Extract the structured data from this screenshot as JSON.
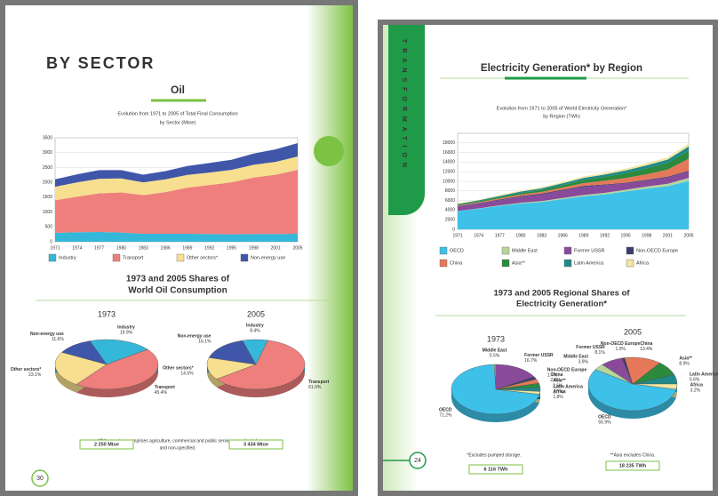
{
  "left_page": {
    "heading": "BY SECTOR",
    "chart_title": "Oil",
    "area_chart": {
      "type": "area",
      "subtitle": [
        "Evolution from 1971 to 2005 of Total Final Consumption",
        "by Sector (Mtoe)"
      ],
      "categories": [
        "1971",
        "1974",
        "1977",
        "1980",
        "1983",
        "1986",
        "1989",
        "1992",
        "1995",
        "1998",
        "2001",
        "2005"
      ],
      "ylim": [
        0,
        3500
      ],
      "yticks": [
        0,
        500,
        1000,
        1500,
        2000,
        2500,
        3000,
        3500
      ],
      "series": [
        {
          "name": "Industry",
          "color": "#35b7d9",
          "values": [
            300,
            320,
            330,
            310,
            270,
            270,
            270,
            260,
            250,
            260,
            260,
            270
          ]
        },
        {
          "name": "Transport",
          "color": "#ee7f7c",
          "values": [
            1100,
            1200,
            1300,
            1350,
            1300,
            1400,
            1550,
            1650,
            1750,
            1900,
            2000,
            2150
          ]
        },
        {
          "name": "Other sectors*",
          "color": "#f7df8f",
          "values": [
            450,
            480,
            490,
            470,
            430,
            430,
            430,
            420,
            420,
            430,
            430,
            450
          ]
        },
        {
          "name": "Non-energy use",
          "color": "#4056a8",
          "values": [
            250,
            270,
            290,
            280,
            260,
            280,
            300,
            320,
            340,
            380,
            420,
            450
          ]
        }
      ]
    },
    "pie_title": [
      "1973 and 2005 Shares of",
      "World Oil Consumption"
    ],
    "pies": [
      {
        "type": "pie",
        "year": "1973",
        "total": "2 250 Mtoe",
        "categories": [
          "Industry",
          "Transport",
          "Other sectors*",
          "Non-energy use"
        ],
        "values": [
          19.9,
          45.4,
          23.1,
          11.6
        ],
        "value_labels": [
          "19.9%",
          "45.4%",
          "23.1%",
          "11.6%"
        ]
      },
      {
        "type": "pie",
        "year": "2005",
        "total": "3 434 Mtoe",
        "categories": [
          "Industry",
          "Transport",
          "Other sectors*",
          "Non-energy use"
        ],
        "values": [
          8.4,
          61.0,
          14.5,
          16.1
        ],
        "value_labels": [
          "8.4%",
          "61.0%",
          "14.5%",
          "16.1%"
        ]
      }
    ],
    "footnote": [
      "*Other sectors comprises agriculture, commercial and public services, residential",
      "and non-specified."
    ],
    "page_number": "30"
  },
  "right_page": {
    "tab": "TRANSFORMATION",
    "chart_title": "Electricity Generation* by Region",
    "area_chart": {
      "type": "area",
      "subtitle": [
        "Evolution from 1971 to 2005 of World Electricity Generation*",
        "by Region (TWh)"
      ],
      "categories": [
        "1971",
        "1974",
        "1977",
        "1980",
        "1983",
        "1986",
        "1989",
        "1992",
        "1995",
        "1998",
        "2001",
        "2005"
      ],
      "ylim": [
        0,
        20000
      ],
      "yticks": [
        0,
        2000,
        4000,
        6000,
        8000,
        10000,
        12000,
        14000,
        16000,
        18000
      ],
      "series": [
        {
          "name": "OECD",
          "color": "#3ec1e8",
          "values": [
            3800,
            4300,
            4900,
            5400,
            5700,
            6300,
            6900,
            7300,
            7900,
            8500,
            9000,
            10100
          ]
        },
        {
          "name": "Middle East",
          "color": "#b5d79a",
          "values": [
            30,
            50,
            90,
            130,
            180,
            220,
            250,
            300,
            350,
            420,
            500,
            600
          ]
        },
        {
          "name": "Former USSR",
          "color": "#8a4a9a",
          "values": [
            900,
            1000,
            1100,
            1250,
            1400,
            1550,
            1700,
            1600,
            1300,
            1250,
            1300,
            1350
          ]
        },
        {
          "name": "Non-OECD Europe",
          "color": "#3c3c6e",
          "values": [
            100,
            120,
            140,
            160,
            180,
            190,
            200,
            160,
            150,
            160,
            170,
            180
          ]
        },
        {
          "name": "China",
          "color": "#e6785a",
          "values": [
            150,
            180,
            230,
            300,
            350,
            450,
            580,
            750,
            1000,
            1150,
            1450,
            2500
          ]
        },
        {
          "name": "Asia**",
          "color": "#2c8a3c",
          "values": [
            150,
            200,
            250,
            320,
            400,
            500,
            650,
            800,
            1000,
            1200,
            1400,
            1650
          ]
        },
        {
          "name": "Latin America",
          "color": "#1f8a8a",
          "values": [
            150,
            190,
            240,
            300,
            340,
            390,
            440,
            500,
            580,
            660,
            720,
            900
          ]
        },
        {
          "name": "Africa",
          "color": "#f2e6a0",
          "values": [
            120,
            140,
            170,
            200,
            230,
            270,
            300,
            330,
            360,
            400,
            440,
            550
          ]
        }
      ]
    },
    "pie_title": [
      "1973 and 2005 Regional Shares of",
      "Electricity Generation*"
    ],
    "pies": [
      {
        "type": "pie",
        "year": "1973",
        "total": "6 116 TWh",
        "categories": [
          "OECD",
          "Middle East",
          "Former USSR",
          "Non-OECD Europe",
          "China",
          "Asia**",
          "Latin America",
          "Africa"
        ],
        "values": [
          71.2,
          0.5,
          16.7,
          1.7,
          2.8,
          2.6,
          2.7,
          1.8
        ],
        "value_labels": [
          "71.2%",
          "0.5%",
          "16.7%",
          "1.7%",
          "2.8%",
          "2.6%",
          "2.7%",
          "1.8%"
        ]
      },
      {
        "type": "pie",
        "year": "2005",
        "total": "18 235 TWh",
        "categories": [
          "OECD",
          "Middle East",
          "Former USSR",
          "Non-OECD Europe",
          "China",
          "Asia**",
          "Latin America",
          "Africa"
        ],
        "values": [
          55.9,
          3.9,
          8.1,
          1.0,
          13.4,
          8.9,
          5.6,
          3.2
        ],
        "value_labels": [
          "55.9%",
          "3.9%",
          "8.1%",
          "1.0%",
          "13.4%",
          "8.9%",
          "5.6%",
          "3.2%"
        ]
      }
    ],
    "footnotes": [
      "*Excludes pumped storage.",
      "**Asia excludes China."
    ],
    "page_number": "24"
  }
}
